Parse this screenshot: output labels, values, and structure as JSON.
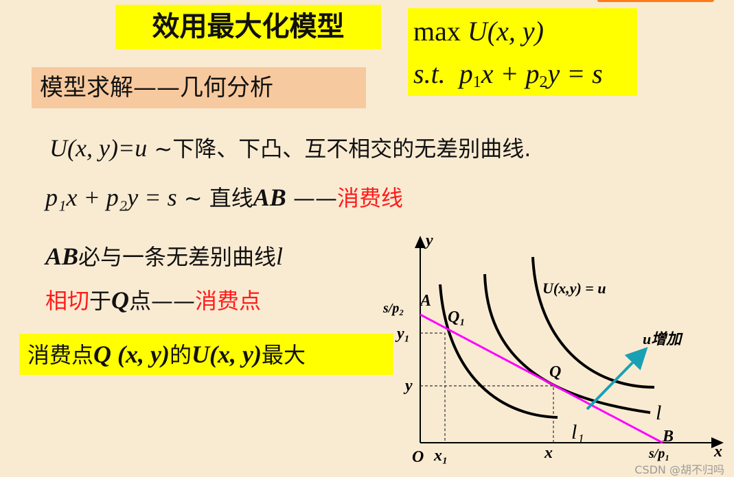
{
  "title": "效用最大化模型",
  "formula": {
    "objective": "max",
    "objective_fn": "U(x, y)",
    "constraint_prefix": "s.t.",
    "constraint": {
      "p": "p",
      "one": "1",
      "x": "x + ",
      "two": "2",
      "y": "y = s"
    }
  },
  "section": "模型求解——几何分析",
  "lines": {
    "l1_math": "U(x, y)=u",
    "l1_text": " ~下降、下凸、互不相交的无差别曲线.",
    "l2_math": "p₁x + p₂y = s",
    "l2_text": " ~ 直线",
    "l2_ab": "AB",
    "l2_dash": " ——",
    "l2_red": "消费线",
    "l3_ab": "AB",
    "l3_text": "必与一条无差别曲线",
    "l3_l": "l",
    "l4_red": "相切",
    "l4_text1": "于",
    "l4_q": "Q",
    "l4_text2": "点——",
    "l4_red2": "消费点"
  },
  "summary": {
    "t1": "消费点",
    "q": "Q",
    "xy": " (x, y)",
    "t2": "的",
    "u": "U(x, y)",
    "t3": "最大"
  },
  "diagram": {
    "y_axis": "y",
    "x_axis": "x",
    "origin": "O",
    "A": "A",
    "B": "B",
    "s_p2": "s/p₂",
    "s_p1": "s/p₁",
    "y1": "y₁",
    "y": "y",
    "x1": "x₁",
    "x": "x",
    "Q1": "Q₁",
    "Q": "Q",
    "curve_label": "U(x,y) = u",
    "u_increase": "u增加",
    "l": "l",
    "l1": "l₁",
    "colors": {
      "budget_line": "#ff00ff",
      "arrow": "#1aa0b4",
      "curves": "#000000"
    }
  },
  "watermark": "CSDN @胡不归吗"
}
